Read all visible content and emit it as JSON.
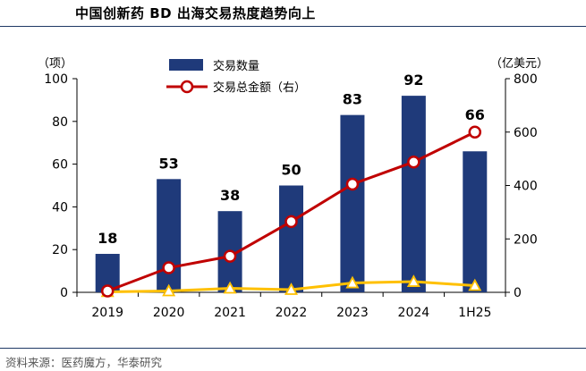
{
  "title": "中国创新药 BD 出海交易热度趋势向上",
  "source": "资料来源：医药魔方，华泰研究",
  "colors": {
    "bar": "#1f3a7a",
    "line": "#c00000",
    "marker_fill": "#ffffff",
    "yellow": "#ffc000"
  },
  "chart_data": {
    "type": "bar+line",
    "categories": [
      "2019",
      "2020",
      "2021",
      "2022",
      "2023",
      "2024",
      "1H25"
    ],
    "series": [
      {
        "name": "交易数量",
        "type": "bar",
        "axis": "left",
        "values": [
          18,
          53,
          38,
          50,
          83,
          92,
          66
        ]
      },
      {
        "name": "交易总金额（右）",
        "type": "line",
        "axis": "right",
        "values": [
          5,
          92,
          135,
          265,
          405,
          488,
          600
        ]
      },
      {
        "name": "",
        "type": "line",
        "axis": "right",
        "values": [
          2,
          5,
          15,
          10,
          35,
          40,
          25
        ]
      }
    ],
    "left_axis": {
      "unit": "（项）",
      "ylim": [
        0,
        100
      ],
      "ticks": [
        "0",
        "20",
        "40",
        "60",
        "80",
        "100"
      ]
    },
    "right_axis": {
      "unit": "（亿美元）",
      "ylim": [
        0,
        800
      ],
      "ticks": [
        "0",
        "200",
        "400",
        "600",
        "800"
      ]
    },
    "bar_labels": [
      "18",
      "53",
      "38",
      "50",
      "83",
      "92",
      "66"
    ],
    "legend": {
      "position": "top-left",
      "items": [
        "交易数量",
        "交易总金额（右）"
      ]
    }
  }
}
